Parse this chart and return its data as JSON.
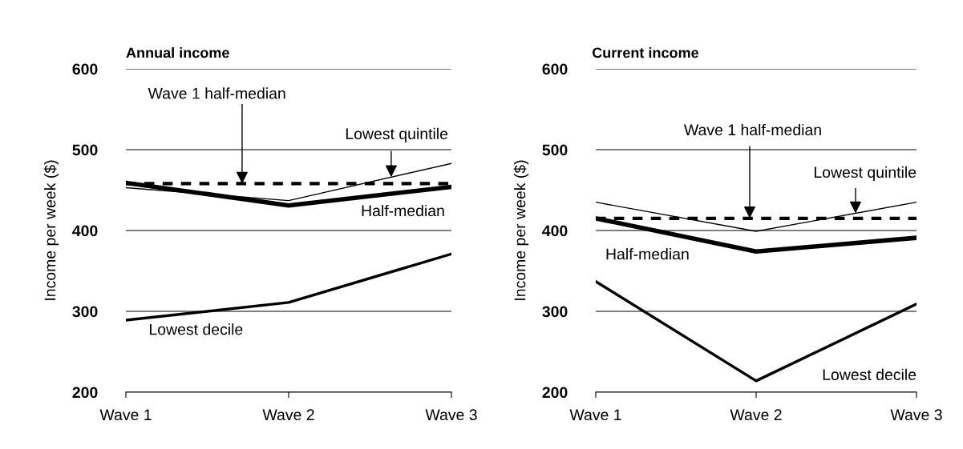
{
  "chart_data": [
    {
      "type": "line",
      "title": "Annual income",
      "ylabel": "Income per week ($)",
      "categories": [
        "Wave 1",
        "Wave 2",
        "Wave 3"
      ],
      "ylim": [
        200,
        600
      ],
      "yticks": [
        200,
        300,
        400,
        500,
        600
      ],
      "grid": "y",
      "marker": "none",
      "series": [
        {
          "name": "Lowest quintile",
          "color": "#000000",
          "values": [
            453,
            437,
            483
          ]
        },
        {
          "name": "Half-median",
          "color": "#000000",
          "values": [
            459,
            431,
            454
          ]
        },
        {
          "name": "Lowest decile",
          "color": "#000000",
          "values": [
            289,
            311,
            371
          ]
        }
      ],
      "ref_lines": [
        {
          "axis": "y",
          "value": 458,
          "label": "Wave 1 half-median",
          "color": "#000000",
          "line_style": "dashed"
        }
      ]
    },
    {
      "type": "line",
      "title": "Current income",
      "ylabel": "Income per week ($)",
      "categories": [
        "Wave 1",
        "Wave 2",
        "Wave 3"
      ],
      "ylim": [
        200,
        600
      ],
      "yticks": [
        200,
        300,
        400,
        500,
        600
      ],
      "grid": "y",
      "marker": "none",
      "series": [
        {
          "name": "Lowest quintile",
          "color": "#000000",
          "values": [
            435,
            399,
            435
          ]
        },
        {
          "name": "Half-median",
          "color": "#000000",
          "values": [
            415,
            374,
            391
          ]
        },
        {
          "name": "Lowest decile",
          "color": "#000000",
          "values": [
            337,
            214,
            309
          ]
        }
      ],
      "ref_lines": [
        {
          "axis": "y",
          "value": 415,
          "label": "Wave 1 half-median",
          "color": "#000000",
          "line_style": "dashed"
        }
      ]
    }
  ]
}
